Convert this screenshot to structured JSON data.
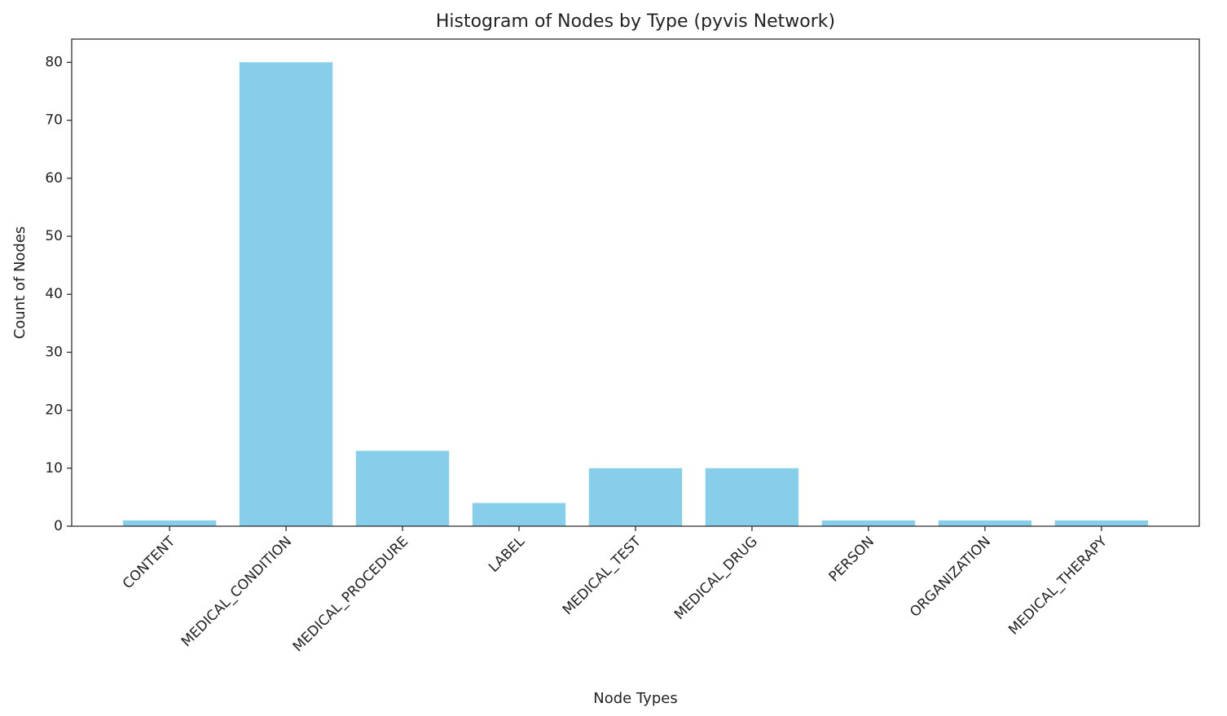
{
  "chart_data": {
    "type": "bar",
    "title": "Histogram of Nodes by Type (pyvis Network)",
    "x_label": "Node Types",
    "y_label": "Count of Nodes",
    "categories": [
      "CONTENT",
      "MEDICAL_CONDITION",
      "MEDICAL_PROCEDURE",
      "LABEL",
      "MEDICAL_TEST",
      "MEDICAL_DRUG",
      "PERSON",
      "ORGANIZATION",
      "MEDICAL_THERAPY"
    ],
    "values": [
      1,
      80,
      13,
      4,
      10,
      10,
      1,
      1,
      1
    ],
    "color": "#87ceeb",
    "ylim": [
      0,
      84
    ],
    "yticks": [
      0,
      10,
      20,
      30,
      40,
      50,
      60,
      70,
      80
    ],
    "grid": false
  }
}
